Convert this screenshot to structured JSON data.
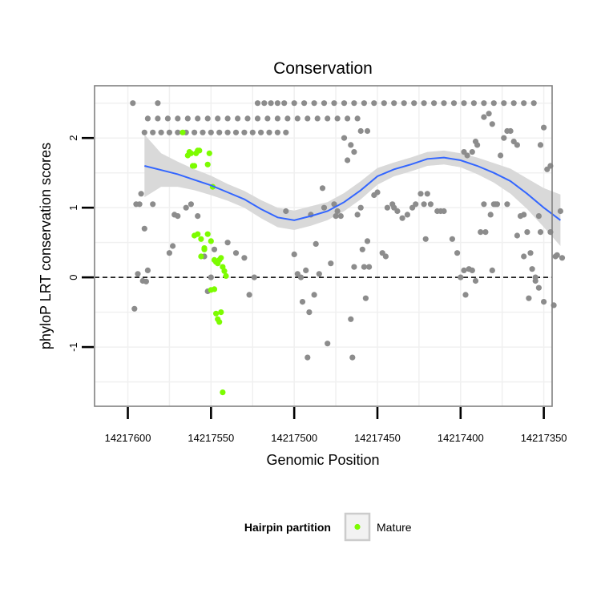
{
  "chart_data": {
    "type": "scatter",
    "title": "Conservation",
    "xlabel": "Genomic Position",
    "ylabel": "phyloP LRT conservation scores",
    "xlim": [
      14217620,
      14217345
    ],
    "ylim": [
      -1.85,
      2.75
    ],
    "x_reversed": true,
    "xticks": [
      14217600,
      14217550,
      14217500,
      14217450,
      14217400,
      14217350
    ],
    "xtick_labels": [
      "14217600",
      "14217550",
      "14217500",
      "14217450",
      "14217400",
      "14217350"
    ],
    "yticks": [
      -1,
      0,
      1,
      2
    ],
    "ytick_labels": [
      "-1",
      "0",
      "1",
      "2"
    ],
    "grid": true,
    "reference_line": {
      "y": 0,
      "style": "dashed"
    },
    "legend": {
      "title": "Hairpin partition",
      "position": "bottom",
      "entries": [
        {
          "label": "Mature",
          "color": "#7CFC00"
        }
      ]
    },
    "colors": {
      "other": "#8c8c8c",
      "mature": "#7CFC00",
      "smooth": "#3366ff",
      "ribbon": "#d9d9d9",
      "grid": "#f0f0f0",
      "panel_border": "#808080"
    },
    "series": [
      {
        "name": "Other",
        "points": [
          [
            14217597,
            2.5
          ],
          [
            14217596,
            -0.45
          ],
          [
            14217595,
            1.05
          ],
          [
            14217594,
            0.05
          ],
          [
            14217593,
            1.05
          ],
          [
            14217592,
            1.2
          ],
          [
            14217591,
            -0.05
          ],
          [
            14217590,
            0.7
          ],
          [
            14217589,
            -0.06
          ],
          [
            14217588,
            0.1
          ],
          [
            14217590,
            2.08
          ],
          [
            14217585,
            2.08
          ],
          [
            14217580,
            2.08
          ],
          [
            14217575,
            2.08
          ],
          [
            14217570,
            2.08
          ],
          [
            14217565,
            2.08
          ],
          [
            14217560,
            2.08
          ],
          [
            14217555,
            2.08
          ],
          [
            14217550,
            2.08
          ],
          [
            14217545,
            2.08
          ],
          [
            14217540,
            2.08
          ],
          [
            14217535,
            2.08
          ],
          [
            14217530,
            2.08
          ],
          [
            14217525,
            2.08
          ],
          [
            14217520,
            2.08
          ],
          [
            14217515,
            2.08
          ],
          [
            14217510,
            2.08
          ],
          [
            14217505,
            2.08
          ],
          [
            14217588,
            2.28
          ],
          [
            14217582,
            2.28
          ],
          [
            14217576,
            2.28
          ],
          [
            14217570,
            2.28
          ],
          [
            14217564,
            2.28
          ],
          [
            14217558,
            2.28
          ],
          [
            14217552,
            2.28
          ],
          [
            14217546,
            2.28
          ],
          [
            14217540,
            2.28
          ],
          [
            14217534,
            2.28
          ],
          [
            14217528,
            2.28
          ],
          [
            14217522,
            2.28
          ],
          [
            14217516,
            2.28
          ],
          [
            14217510,
            2.28
          ],
          [
            14217504,
            2.28
          ],
          [
            14217498,
            2.28
          ],
          [
            14217492,
            2.28
          ],
          [
            14217486,
            2.28
          ],
          [
            14217480,
            2.28
          ],
          [
            14217474,
            2.28
          ],
          [
            14217468,
            2.28
          ],
          [
            14217462,
            2.28
          ],
          [
            14217582,
            2.5
          ],
          [
            14217522,
            2.5
          ],
          [
            14217518,
            2.5
          ],
          [
            14217514,
            2.5
          ],
          [
            14217510,
            2.5
          ],
          [
            14217506,
            2.5
          ],
          [
            14217500,
            2.5
          ],
          [
            14217494,
            2.5
          ],
          [
            14217488,
            2.5
          ],
          [
            14217482,
            2.5
          ],
          [
            14217476,
            2.5
          ],
          [
            14217470,
            2.5
          ],
          [
            14217464,
            2.5
          ],
          [
            14217458,
            2.5
          ],
          [
            14217452,
            2.5
          ],
          [
            14217446,
            2.5
          ],
          [
            14217440,
            2.5
          ],
          [
            14217434,
            2.5
          ],
          [
            14217428,
            2.5
          ],
          [
            14217422,
            2.5
          ],
          [
            14217416,
            2.5
          ],
          [
            14217410,
            2.5
          ],
          [
            14217404,
            2.5
          ],
          [
            14217398,
            2.5
          ],
          [
            14217392,
            2.5
          ],
          [
            14217386,
            2.5
          ],
          [
            14217380,
            2.5
          ],
          [
            14217374,
            2.5
          ],
          [
            14217368,
            2.5
          ],
          [
            14217362,
            2.5
          ],
          [
            14217356,
            2.5
          ],
          [
            14217585,
            1.05
          ],
          [
            14217575,
            0.35
          ],
          [
            14217573,
            0.45
          ],
          [
            14217572,
            0.9
          ],
          [
            14217570,
            0.88
          ],
          [
            14217565,
            1.0
          ],
          [
            14217562,
            1.05
          ],
          [
            14217558,
            0.88
          ],
          [
            14217554,
            0.3
          ],
          [
            14217552,
            -0.2
          ],
          [
            14217550,
            0.0
          ],
          [
            14217548,
            0.4
          ],
          [
            14217540,
            0.5
          ],
          [
            14217535,
            0.35
          ],
          [
            14217530,
            0.28
          ],
          [
            14217527,
            -0.25
          ],
          [
            14217524,
            0.0
          ],
          [
            14217505,
            0.95
          ],
          [
            14217500,
            0.33
          ],
          [
            14217498,
            0.05
          ],
          [
            14217496,
            0.0
          ],
          [
            14217495,
            -0.35
          ],
          [
            14217493,
            0.1
          ],
          [
            14217492,
            -1.15
          ],
          [
            14217491,
            -0.5
          ],
          [
            14217490,
            0.9
          ],
          [
            14217488,
            -0.25
          ],
          [
            14217487,
            0.48
          ],
          [
            14217485,
            0.05
          ],
          [
            14217483,
            1.28
          ],
          [
            14217482,
            1.0
          ],
          [
            14217480,
            -0.95
          ],
          [
            14217478,
            0.2
          ],
          [
            14217476,
            1.05
          ],
          [
            14217475,
            0.88
          ],
          [
            14217474,
            0.95
          ],
          [
            14217472,
            0.88
          ],
          [
            14217470,
            2.0
          ],
          [
            14217468,
            1.68
          ],
          [
            14217466,
            -0.6
          ],
          [
            14217465,
            -1.15
          ],
          [
            14217464,
            0.15
          ],
          [
            14217462,
            0.9
          ],
          [
            14217460,
            1.0
          ],
          [
            14217459,
            0.4
          ],
          [
            14217458,
            0.15
          ],
          [
            14217457,
            -0.3
          ],
          [
            14217456,
            0.52
          ],
          [
            14217455,
            0.15
          ],
          [
            14217452,
            1.18
          ],
          [
            14217450,
            1.22
          ],
          [
            14217447,
            0.35
          ],
          [
            14217445,
            0.3
          ],
          [
            14217444,
            1.0
          ],
          [
            14217441,
            1.05
          ],
          [
            14217440,
            1.0
          ],
          [
            14217438,
            0.95
          ],
          [
            14217435,
            0.85
          ],
          [
            14217432,
            0.9
          ],
          [
            14217429,
            1.0
          ],
          [
            14217427,
            1.05
          ],
          [
            14217424,
            1.2
          ],
          [
            14217422,
            1.05
          ],
          [
            14217421,
            0.55
          ],
          [
            14217420,
            1.2
          ],
          [
            14217418,
            1.05
          ],
          [
            14217414,
            0.95
          ],
          [
            14217466,
            1.9
          ],
          [
            14217464,
            1.8
          ],
          [
            14217460,
            2.1
          ],
          [
            14217456,
            2.1
          ],
          [
            14217412,
            0.95
          ],
          [
            14217410,
            0.95
          ],
          [
            14217405,
            0.55
          ],
          [
            14217402,
            0.35
          ],
          [
            14217400,
            0.0
          ],
          [
            14217398,
            0.1
          ],
          [
            14217397,
            -0.25
          ],
          [
            14217395,
            0.12
          ],
          [
            14217393,
            0.1
          ],
          [
            14217391,
            -0.05
          ],
          [
            14217388,
            0.65
          ],
          [
            14217386,
            1.05
          ],
          [
            14217385,
            0.65
          ],
          [
            14217382,
            0.9
          ],
          [
            14217381,
            0.1
          ],
          [
            14217379,
            1.05
          ],
          [
            14217376,
            1.75
          ],
          [
            14217374,
            2.0
          ],
          [
            14217372,
            2.1
          ],
          [
            14217370,
            2.1
          ],
          [
            14217368,
            1.95
          ],
          [
            14217366,
            1.9
          ],
          [
            14217364,
            0.88
          ],
          [
            14217362,
            0.9
          ],
          [
            14217360,
            0.65
          ],
          [
            14217358,
            0.35
          ],
          [
            14217357,
            0.12
          ],
          [
            14217355,
            -0.05
          ],
          [
            14217353,
            0.88
          ],
          [
            14217352,
            0.65
          ],
          [
            14217350,
            -0.35
          ],
          [
            14217348,
            1.55
          ],
          [
            14217346,
            0.65
          ],
          [
            14217343,
            0.3
          ],
          [
            14217342,
            0.32
          ],
          [
            14217340,
            0.95
          ],
          [
            14217339,
            0.28
          ],
          [
            14217398,
            1.8
          ],
          [
            14217396,
            1.75
          ],
          [
            14217393,
            1.8
          ],
          [
            14217391,
            1.95
          ],
          [
            14217390,
            1.9
          ],
          [
            14217386,
            2.3
          ],
          [
            14217383,
            2.35
          ],
          [
            14217381,
            2.2
          ],
          [
            14217380,
            1.05
          ],
          [
            14217378,
            1.05
          ],
          [
            14217372,
            1.05
          ],
          [
            14217366,
            0.6
          ],
          [
            14217362,
            0.3
          ],
          [
            14217359,
            -0.3
          ],
          [
            14217355,
            0.0
          ],
          [
            14217353,
            -0.15
          ],
          [
            14217352,
            1.9
          ],
          [
            14217350,
            2.15
          ],
          [
            14217346,
            1.6
          ],
          [
            14217344,
            -0.4
          ]
        ]
      },
      {
        "name": "Mature",
        "points": [
          [
            14217567,
            2.08
          ],
          [
            14217564,
            1.75
          ],
          [
            14217563,
            1.8
          ],
          [
            14217562,
            1.78
          ],
          [
            14217561,
            1.6
          ],
          [
            14217560,
            1.6
          ],
          [
            14217559,
            1.78
          ],
          [
            14217558,
            1.82
          ],
          [
            14217557,
            1.82
          ],
          [
            14217552,
            1.62
          ],
          [
            14217551,
            1.78
          ],
          [
            14217549,
            1.3
          ],
          [
            14217560,
            0.6
          ],
          [
            14217558,
            0.62
          ],
          [
            14217556,
            0.55
          ],
          [
            14217554,
            0.42
          ],
          [
            14217552,
            0.62
          ],
          [
            14217550,
            0.52
          ],
          [
            14217548,
            0.25
          ],
          [
            14217547,
            0.22
          ],
          [
            14217546,
            0.2
          ],
          [
            14217545,
            0.25
          ],
          [
            14217544,
            0.28
          ],
          [
            14217543,
            0.15
          ],
          [
            14217542,
            0.09
          ],
          [
            14217541,
            0.02
          ],
          [
            14217550,
            -0.18
          ],
          [
            14217548,
            -0.17
          ],
          [
            14217547,
            -0.52
          ],
          [
            14217546,
            -0.6
          ],
          [
            14217545,
            -0.64
          ],
          [
            14217544,
            -0.5
          ],
          [
            14217543,
            -1.65
          ],
          [
            14217556,
            0.3
          ],
          [
            14217554,
            0.4
          ]
        ]
      }
    ],
    "smooth_curve": {
      "x": [
        14217590,
        14217580,
        14217570,
        14217560,
        14217550,
        14217540,
        14217530,
        14217520,
        14217510,
        14217500,
        14217490,
        14217480,
        14217470,
        14217460,
        14217450,
        14217440,
        14217430,
        14217420,
        14217410,
        14217400,
        14217390,
        14217380,
        14217370,
        14217360,
        14217350,
        14217340
      ],
      "y": [
        1.6,
        1.54,
        1.48,
        1.4,
        1.32,
        1.22,
        1.12,
        0.98,
        0.86,
        0.82,
        0.88,
        0.95,
        1.08,
        1.25,
        1.45,
        1.55,
        1.62,
        1.7,
        1.72,
        1.68,
        1.6,
        1.5,
        1.38,
        1.2,
        1.0,
        0.82
      ],
      "lower": [
        1.15,
        1.3,
        1.3,
        1.25,
        1.18,
        1.1,
        1.0,
        0.85,
        0.72,
        0.68,
        0.74,
        0.82,
        0.95,
        1.12,
        1.33,
        1.45,
        1.52,
        1.6,
        1.62,
        1.58,
        1.48,
        1.36,
        1.2,
        0.98,
        0.72,
        0.45
      ],
      "upper": [
        2.05,
        1.78,
        1.66,
        1.55,
        1.46,
        1.34,
        1.24,
        1.11,
        1.0,
        0.96,
        1.02,
        1.08,
        1.21,
        1.38,
        1.57,
        1.65,
        1.72,
        1.8,
        1.82,
        1.78,
        1.72,
        1.64,
        1.56,
        1.42,
        1.28,
        1.19
      ]
    }
  }
}
